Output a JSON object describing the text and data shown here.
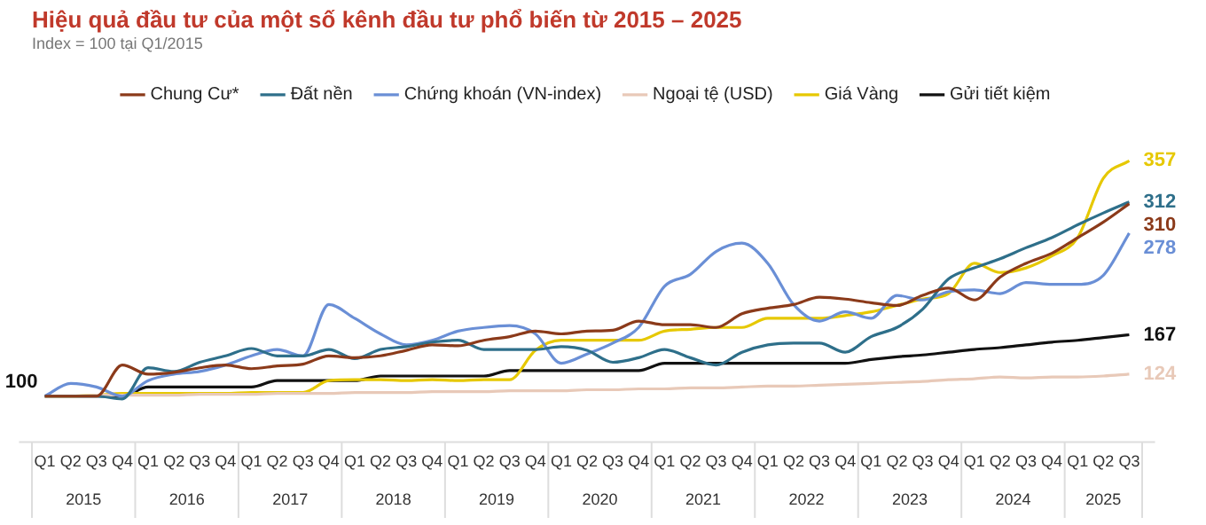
{
  "chart_data": {
    "type": "line",
    "title": "Hiệu quả đầu tư của một số kênh đầu tư phổ biến từ 2015 – 2025",
    "subtitle": "Index = 100 tại Q1/2015",
    "categories": [
      "Q1",
      "Q2",
      "Q3",
      "Q4",
      "Q1",
      "Q2",
      "Q3",
      "Q4",
      "Q1",
      "Q2",
      "Q3",
      "Q4",
      "Q1",
      "Q2",
      "Q3",
      "Q4",
      "Q1",
      "Q2",
      "Q3",
      "Q4",
      "Q1",
      "Q2",
      "Q3",
      "Q4",
      "Q1",
      "Q2",
      "Q3",
      "Q4",
      "Q1",
      "Q2",
      "Q3",
      "Q4",
      "Q1",
      "Q2",
      "Q3",
      "Q4",
      "Q1",
      "Q2",
      "Q3",
      "Q4",
      "Q1",
      "Q2",
      "Q3"
    ],
    "annotations": [
      "2015",
      "2016",
      "2017",
      "2018",
      "2019",
      "2020",
      "2021",
      "2022",
      "2023",
      "2024",
      "2025"
    ],
    "legend": "top",
    "grid": false,
    "marker": "none",
    "line_style": "solid",
    "series": [
      {
        "name": "Chung Cư*",
        "color": "#8b3a1a",
        "values": [
          100,
          100,
          100,
          134,
          124,
          126,
          131,
          134,
          130,
          133,
          135,
          144,
          142,
          144,
          150,
          156,
          155,
          161,
          165,
          171,
          168,
          171,
          172,
          182,
          178,
          178,
          175,
          190,
          196,
          200,
          208,
          206,
          202,
          199,
          210,
          218,
          205,
          230,
          245,
          256,
          273,
          290,
          310
        ],
        "value_labels": [
          null,
          null,
          null,
          null,
          null,
          null,
          null,
          null,
          null,
          null,
          null,
          null,
          null,
          null,
          null,
          null,
          null,
          null,
          null,
          null,
          null,
          null,
          null,
          null,
          null,
          null,
          null,
          null,
          null,
          null,
          null,
          null,
          null,
          null,
          null,
          null,
          null,
          null,
          null,
          null,
          null,
          null,
          "310"
        ]
      },
      {
        "name": "Đất nền",
        "color": "#2e6f8a",
        "values": [
          100,
          100,
          100,
          97,
          131,
          127,
          137,
          144,
          152,
          144,
          144,
          151,
          141,
          151,
          154,
          159,
          161,
          151,
          151,
          151,
          154,
          150,
          137,
          142,
          151,
          142,
          134,
          148,
          156,
          158,
          158,
          148,
          165,
          175,
          195,
          228,
          240,
          250,
          262,
          273,
          287,
          300,
          312
        ],
        "value_labels": [
          null,
          null,
          null,
          null,
          null,
          null,
          null,
          null,
          null,
          null,
          null,
          null,
          null,
          null,
          null,
          null,
          null,
          null,
          null,
          null,
          null,
          null,
          null,
          null,
          null,
          null,
          null,
          null,
          null,
          null,
          null,
          null,
          null,
          null,
          null,
          null,
          null,
          null,
          null,
          null,
          null,
          null,
          "312"
        ]
      },
      {
        "name": "Chứng khoán (VN-index)",
        "color": "#6a8fd6",
        "values": [
          100,
          114,
          110,
          100,
          117,
          124,
          127,
          134,
          144,
          151,
          144,
          200,
          185,
          168,
          156,
          161,
          171,
          175,
          177,
          168,
          136,
          146,
          158,
          175,
          220,
          233,
          258,
          267,
          245,
          200,
          182,
          192,
          185,
          210,
          205,
          214,
          216,
          212,
          224,
          222,
          222,
          232,
          278
        ],
        "value_labels": [
          null,
          null,
          null,
          null,
          null,
          null,
          null,
          null,
          null,
          null,
          null,
          null,
          null,
          null,
          null,
          null,
          null,
          null,
          null,
          null,
          null,
          null,
          null,
          null,
          null,
          null,
          null,
          null,
          null,
          null,
          null,
          null,
          null,
          null,
          null,
          null,
          null,
          null,
          null,
          null,
          null,
          null,
          "278"
        ]
      },
      {
        "name": "Ngoại tệ (USD)",
        "color": "#e8c9b8",
        "values": [
          100,
          100,
          101,
          101,
          101,
          101,
          102,
          102,
          102,
          103,
          103,
          103,
          104,
          104,
          104,
          105,
          105,
          105,
          106,
          106,
          106,
          107,
          107,
          108,
          108,
          109,
          109,
          110,
          111,
          111,
          112,
          113,
          114,
          115,
          116,
          118,
          119,
          121,
          120,
          121,
          121,
          122,
          124
        ],
        "value_labels": [
          null,
          null,
          null,
          null,
          null,
          null,
          null,
          null,
          null,
          null,
          null,
          null,
          null,
          null,
          null,
          null,
          null,
          null,
          null,
          null,
          null,
          null,
          null,
          null,
          null,
          null,
          null,
          null,
          null,
          null,
          null,
          null,
          null,
          null,
          null,
          null,
          null,
          null,
          null,
          null,
          null,
          null,
          "124"
        ]
      },
      {
        "name": "Giá Vàng",
        "color": "#e6c800",
        "values": [
          100,
          100,
          101,
          103,
          103,
          103,
          103,
          103,
          104,
          104,
          104,
          117,
          118,
          118,
          117,
          118,
          117,
          118,
          118,
          150,
          161,
          161,
          161,
          161,
          171,
          173,
          175,
          175,
          185,
          185,
          185,
          188,
          192,
          199,
          206,
          212,
          245,
          235,
          240,
          253,
          273,
          338,
          357
        ],
        "value_labels": [
          null,
          null,
          null,
          null,
          null,
          null,
          null,
          null,
          null,
          null,
          null,
          null,
          null,
          null,
          null,
          null,
          null,
          null,
          null,
          null,
          null,
          null,
          null,
          null,
          null,
          null,
          null,
          null,
          null,
          null,
          null,
          null,
          null,
          null,
          null,
          null,
          null,
          null,
          null,
          null,
          null,
          null,
          "357"
        ]
      },
      {
        "name": "Gửi tiết kiệm",
        "color": "#111111",
        "values": [
          100,
          100,
          100,
          100,
          110,
          110,
          110,
          110,
          110,
          117,
          117,
          117,
          117,
          122,
          122,
          122,
          122,
          122,
          128,
          128,
          128,
          128,
          128,
          128,
          136,
          136,
          136,
          136,
          136,
          136,
          136,
          136,
          140,
          143,
          145,
          148,
          151,
          153,
          156,
          159,
          161,
          164,
          167
        ],
        "value_labels": [
          "100",
          null,
          null,
          null,
          null,
          null,
          null,
          null,
          null,
          null,
          null,
          null,
          null,
          null,
          null,
          null,
          null,
          null,
          null,
          null,
          null,
          null,
          null,
          null,
          null,
          null,
          null,
          null,
          null,
          null,
          null,
          null,
          null,
          null,
          null,
          null,
          null,
          null,
          null,
          null,
          null,
          null,
          "167"
        ]
      }
    ]
  }
}
